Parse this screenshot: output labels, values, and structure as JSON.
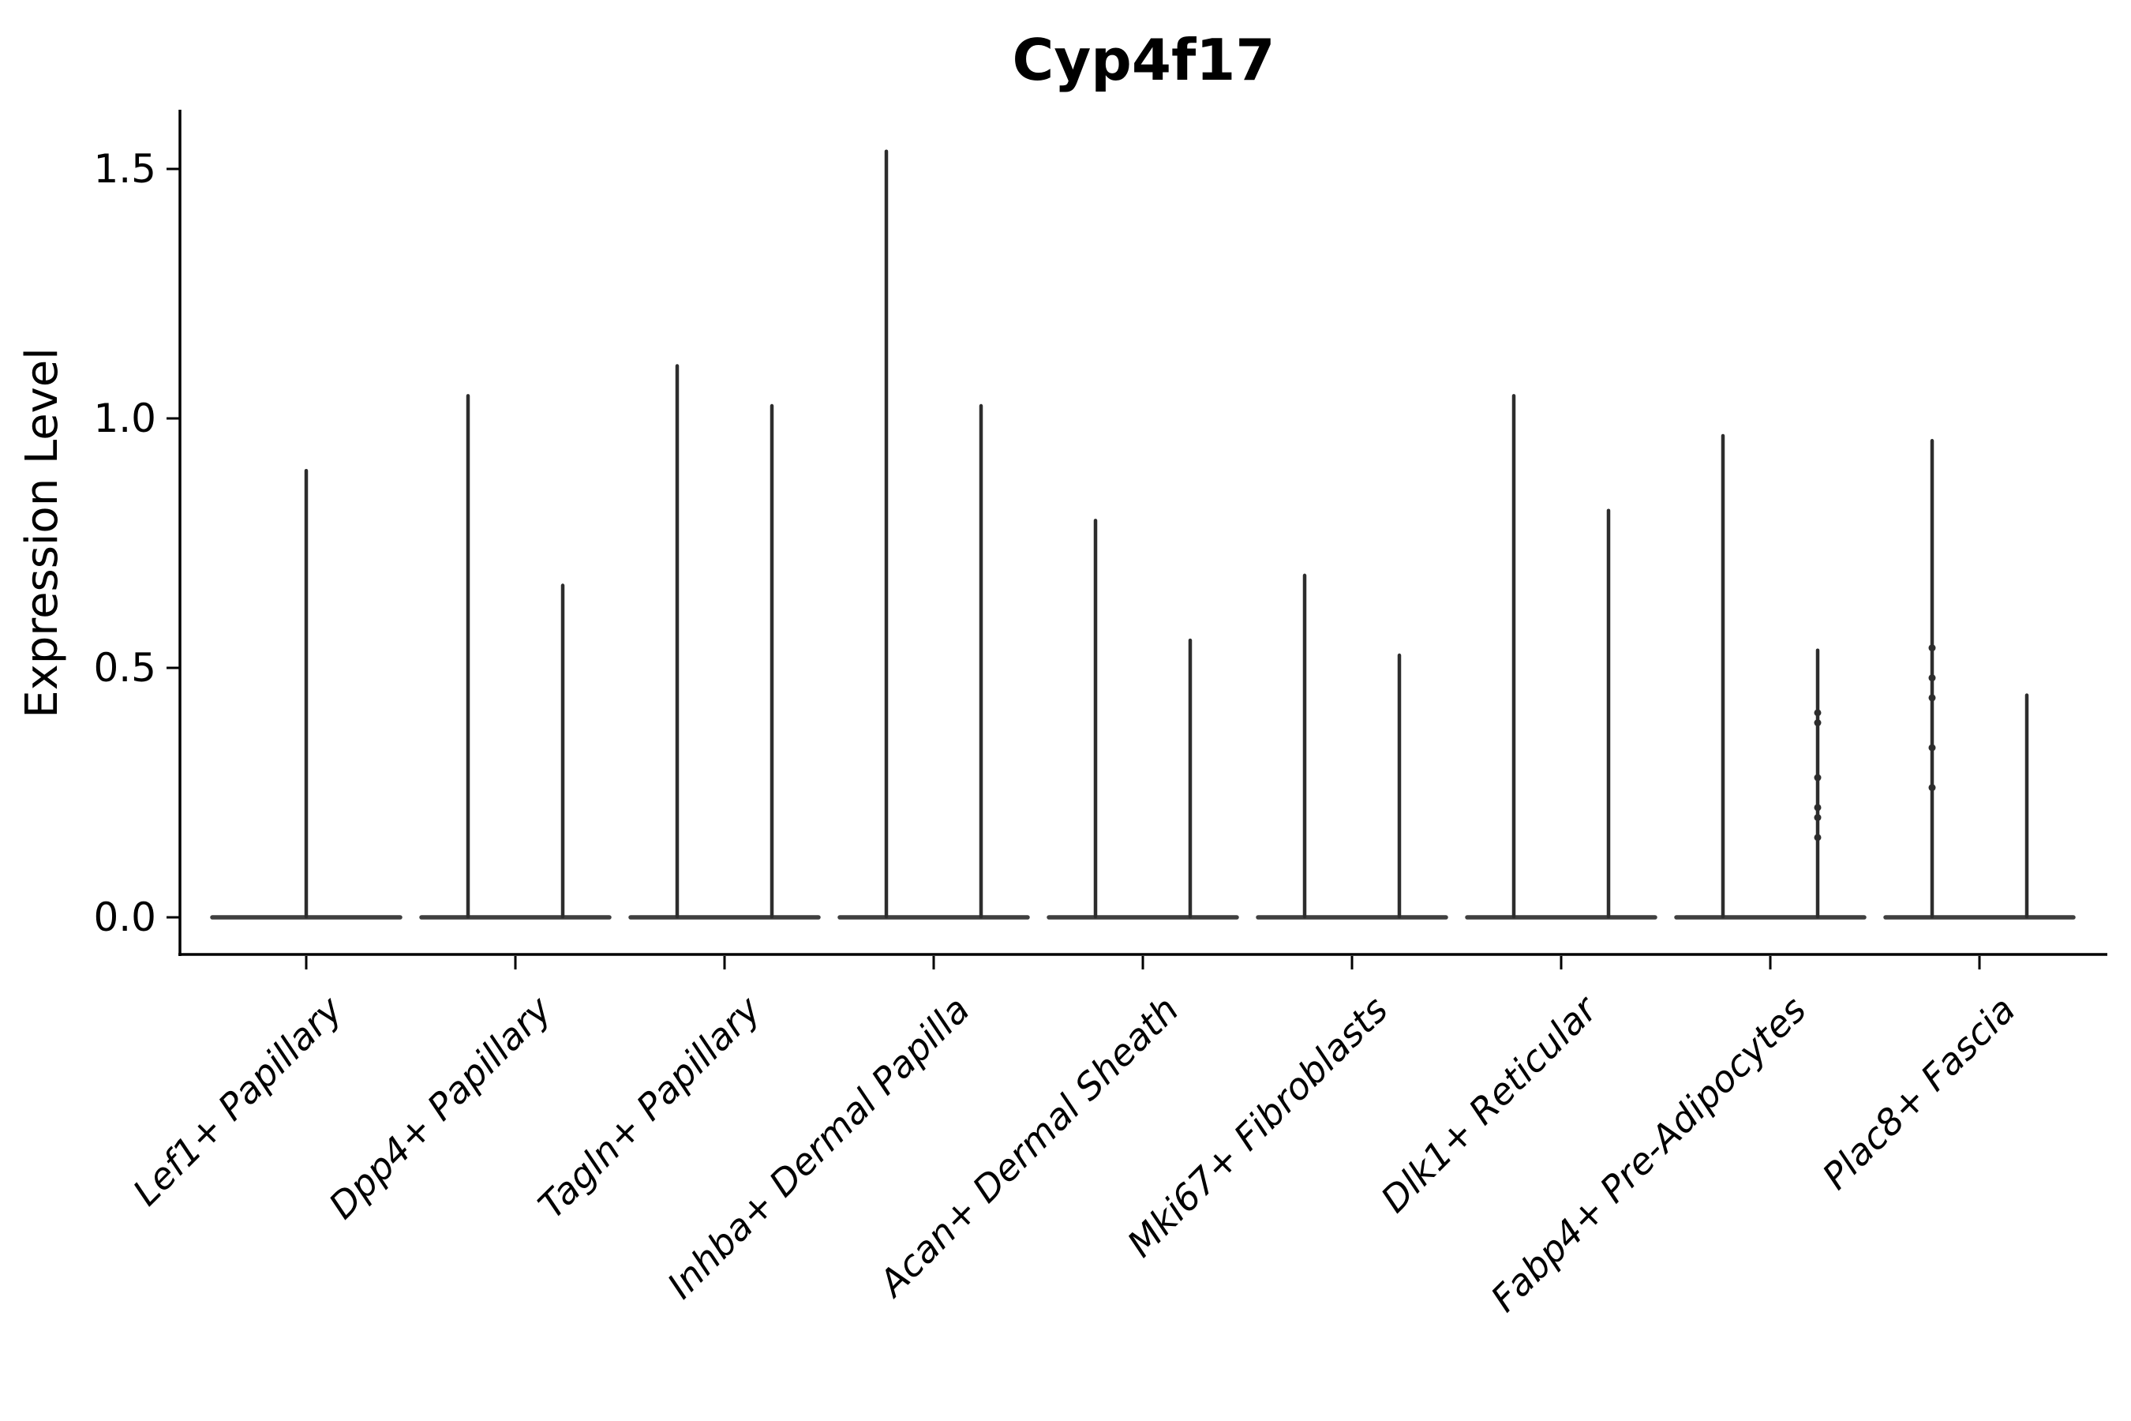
{
  "chart_data": {
    "type": "violin",
    "title": "Cyp4f17",
    "xlabel": "",
    "ylabel": "Expression Level",
    "yticks": [
      0.0,
      0.5,
      1.0,
      1.5
    ],
    "ytick_labels": [
      "0.0",
      "0.5",
      "1.0",
      "1.5"
    ],
    "ylim": [
      -0.07,
      1.62
    ],
    "grid": false,
    "legend": null,
    "spines": [
      "left",
      "bottom"
    ],
    "violin_style": "collapsed-spike-with-flat-base-at-zero",
    "categories": [
      "Lef1+ Papillary",
      "Dpp4+ Papillary",
      "Tagln+ Papillary",
      "Inhba+ Dermal Papilla",
      "Acan+ Dermal Sheath",
      "Mki67+ Fibroblasts",
      "Dlk1+ Reticular",
      "Fabp4+ Pre-Adipocytes",
      "Plac8+ Fascia"
    ],
    "groups": [
      {
        "category": "Lef1+ Papillary",
        "violins": [
          {
            "position": "center",
            "baseline": 0.0,
            "max": 0.9,
            "points": []
          }
        ]
      },
      {
        "category": "Dpp4+ Papillary",
        "violins": [
          {
            "position": "left",
            "baseline": 0.0,
            "max": 1.05,
            "points": []
          },
          {
            "position": "right",
            "baseline": 0.0,
            "max": 0.67,
            "points": []
          }
        ]
      },
      {
        "category": "Tagln+ Papillary",
        "violins": [
          {
            "position": "left",
            "baseline": 0.0,
            "max": 1.11,
            "points": []
          },
          {
            "position": "right",
            "baseline": 0.0,
            "max": 1.03,
            "points": []
          }
        ]
      },
      {
        "category": "Inhba+ Dermal Papilla",
        "violins": [
          {
            "position": "left",
            "baseline": 0.0,
            "max": 1.54,
            "points": []
          },
          {
            "position": "right",
            "baseline": 0.0,
            "max": 1.03,
            "points": []
          }
        ]
      },
      {
        "category": "Acan+ Dermal Sheath",
        "violins": [
          {
            "position": "left",
            "baseline": 0.0,
            "max": 0.8,
            "points": []
          },
          {
            "position": "right",
            "baseline": 0.0,
            "max": 0.56,
            "points": []
          }
        ]
      },
      {
        "category": "Mki67+ Fibroblasts",
        "violins": [
          {
            "position": "left",
            "baseline": 0.0,
            "max": 0.69,
            "points": []
          },
          {
            "position": "right",
            "baseline": 0.0,
            "max": 0.53,
            "points": []
          }
        ]
      },
      {
        "category": "Dlk1+ Reticular",
        "violins": [
          {
            "position": "left",
            "baseline": 0.0,
            "max": 1.05,
            "points": []
          },
          {
            "position": "right",
            "baseline": 0.0,
            "max": 0.82,
            "points": []
          }
        ]
      },
      {
        "category": "Fabp4+ Pre-Adipocytes",
        "violins": [
          {
            "position": "left",
            "baseline": 0.0,
            "max": 0.97,
            "points": []
          },
          {
            "position": "right",
            "baseline": 0.0,
            "max": 0.54,
            "points": [
              0.41,
              0.39,
              0.28,
              0.22,
              0.2,
              0.16
            ]
          }
        ]
      },
      {
        "category": "Plac8+ Fascia",
        "violins": [
          {
            "position": "left",
            "baseline": 0.0,
            "max": 0.96,
            "points": [
              0.54,
              0.48,
              0.44,
              0.34,
              0.26
            ]
          },
          {
            "position": "right",
            "baseline": 0.0,
            "max": 0.45,
            "points": []
          }
        ]
      }
    ],
    "colors": {
      "spike": "#2d2d2d",
      "base_line": "#3f3f3f",
      "axis": "#000000",
      "text": "#000000",
      "background": "#ffffff"
    }
  }
}
